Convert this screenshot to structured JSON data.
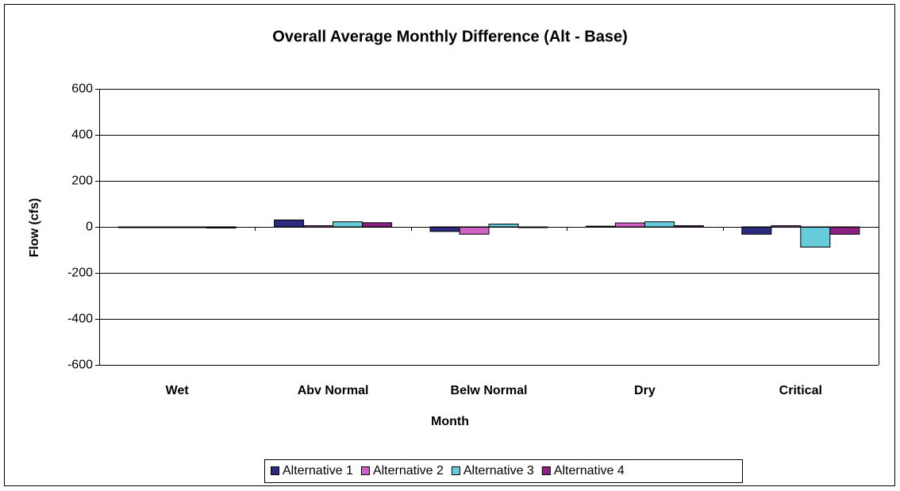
{
  "chart_data": {
    "type": "bar",
    "title": "Overall Average Monthly Difference (Alt - Base)",
    "x_label": "Month",
    "y_label": "Flow (cfs)",
    "categories": [
      "Wet",
      "Abv Normal",
      "Belw Normal",
      "Dry",
      "Critical"
    ],
    "series": [
      {
        "name": "Alternative 1",
        "color": "#2b2b80",
        "values": [
          0,
          30,
          -20,
          3,
          -32
        ]
      },
      {
        "name": "Alternative 2",
        "color": "#d062c4",
        "values": [
          0,
          5,
          -32,
          17,
          5
        ]
      },
      {
        "name": "Alternative 3",
        "color": "#66ccdc",
        "values": [
          0,
          22,
          12,
          22,
          -88
        ]
      },
      {
        "name": "Alternative 4",
        "color": "#8a2280",
        "values": [
          -5,
          18,
          0,
          5,
          -32
        ]
      }
    ],
    "ylim": [
      -600,
      600
    ],
    "yticks": [
      -600,
      -400,
      -200,
      0,
      200,
      400,
      600
    ],
    "grid": true,
    "legend": "bottom"
  }
}
